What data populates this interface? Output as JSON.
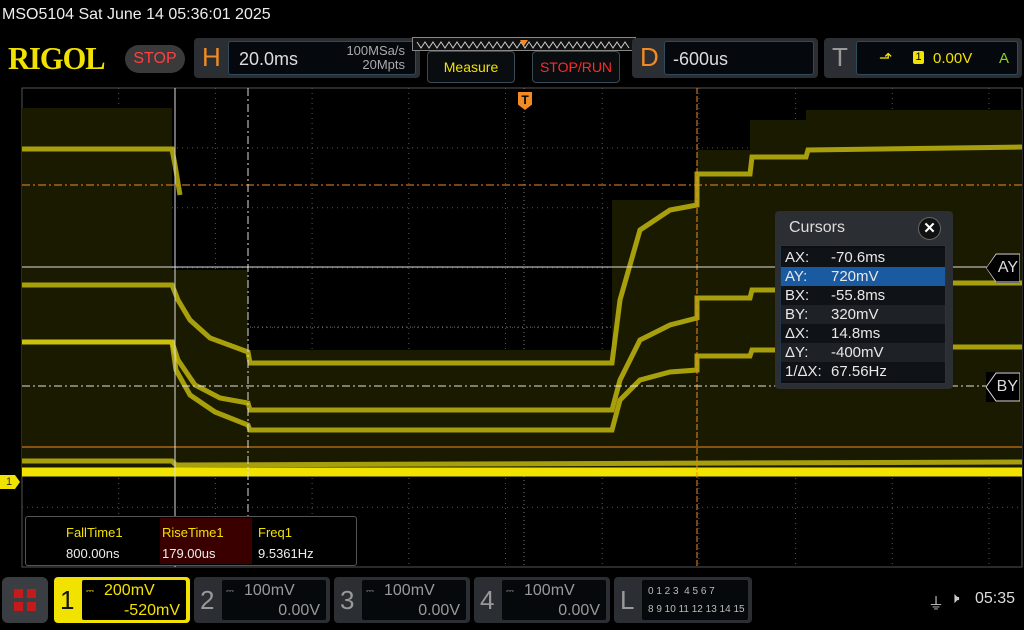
{
  "header": {
    "model_datetime": "MSO5104  Sat June 14 05:36:01 2025",
    "logo": "RIGOL",
    "run_state": "STOP"
  },
  "horizontal": {
    "letter": "H",
    "timebase": "20.0ms",
    "sample_rate": "100MSa/s",
    "memory_depth": "20Mpts"
  },
  "buttons": {
    "measure": "Measure",
    "stop_run": "STOP/RUN"
  },
  "delay": {
    "letter": "D",
    "value": "-600us"
  },
  "trigger": {
    "letter": "T",
    "source": "1",
    "level": "0.00V",
    "mode": "A",
    "marker": "T"
  },
  "cursors": {
    "title": "Cursors",
    "rows": [
      {
        "k": "AX:",
        "v": "-70.6ms"
      },
      {
        "k": "AY:",
        "v": "720mV"
      },
      {
        "k": "BX:",
        "v": "-55.8ms"
      },
      {
        "k": "BY:",
        "v": "320mV"
      },
      {
        "k": "ΔX:",
        "v": "14.8ms"
      },
      {
        "k": "ΔY:",
        "v": "-400mV"
      },
      {
        "k": "1/ΔX:",
        "v": "67.56Hz"
      }
    ],
    "selected_row": 1,
    "ay_tag": "AY",
    "by_tag": "BY"
  },
  "measurements": [
    {
      "name": "FallTime1",
      "value": "800.00ns"
    },
    {
      "name": "RiseTime1",
      "value": "179.00us"
    },
    {
      "name": "Freq1",
      "value": "9.5361Hz"
    }
  ],
  "channels": [
    {
      "num": "1",
      "scale": "200mV",
      "offset": "-520mV",
      "active": true
    },
    {
      "num": "2",
      "scale": "100mV",
      "offset": "0.00V",
      "active": false
    },
    {
      "num": "3",
      "scale": "100mV",
      "offset": "0.00V",
      "active": false
    },
    {
      "num": "4",
      "scale": "100mV",
      "offset": "0.00V",
      "active": false
    }
  ],
  "logic": {
    "letter": "L",
    "row1": "0 1 2 3  4 5 6 7",
    "row2": "8 9 10 11 12 13 14 15"
  },
  "ch1_marker": "1",
  "status": {
    "clock": "05:35"
  },
  "colors": {
    "ch1": "#f2e200",
    "accent": "#f08a24",
    "highlight": "#1a5aa0"
  }
}
